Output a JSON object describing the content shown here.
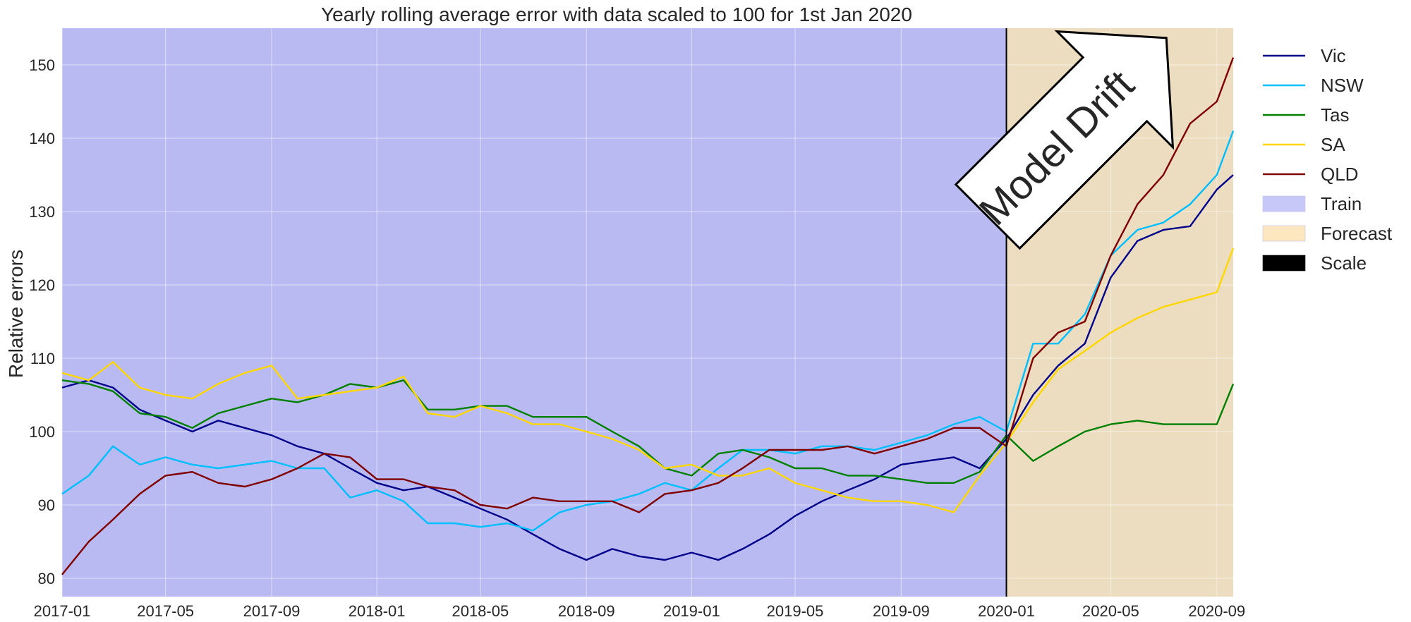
{
  "chart_data": {
    "type": "line",
    "title": "Yearly rolling average error with data scaled to 100 for 1st Jan 2020",
    "xlabel": "",
    "ylabel": "Relative errors",
    "x_ticks": [
      "2017-01",
      "2017-05",
      "2017-09",
      "2018-01",
      "2018-05",
      "2018-09",
      "2019-01",
      "2019-05",
      "2019-09",
      "2020-01",
      "2020-05",
      "2020-09"
    ],
    "xlim": [
      "2017-01-01",
      "2020-09-20"
    ],
    "y_ticks": [
      80,
      90,
      100,
      110,
      120,
      130,
      140,
      150
    ],
    "ylim": [
      77.5,
      155
    ],
    "grid": true,
    "legend_position": "outside-right",
    "regions": [
      {
        "name": "Train",
        "start": "2017-01-01",
        "end": "2020-01-01",
        "color": "#b9baf2"
      },
      {
        "name": "Forecast",
        "start": "2020-01-01",
        "end": "2020-09-20",
        "color": "#ecdcc0"
      }
    ],
    "divider": {
      "date": "2020-01-01",
      "color": "#000000"
    },
    "annotation": {
      "text": "Model Drift",
      "type": "arrow"
    },
    "legend": [
      {
        "name": "Vic",
        "kind": "line",
        "color": "#00008b"
      },
      {
        "name": "NSW",
        "kind": "line",
        "color": "#00bfff"
      },
      {
        "name": "Tas",
        "kind": "line",
        "color": "#008000"
      },
      {
        "name": "SA",
        "kind": "line",
        "color": "#ffd700"
      },
      {
        "name": "QLD",
        "kind": "line",
        "color": "#800000"
      },
      {
        "name": "Train",
        "kind": "patch",
        "color": "#c8c8f8"
      },
      {
        "name": "Forecast",
        "kind": "patch",
        "color": "#fde7c0"
      },
      {
        "name": "Scale",
        "kind": "patch",
        "color": "#000000"
      }
    ],
    "series": [
      {
        "name": "Vic",
        "color": "#00008b",
        "points": [
          [
            "2017-01-01",
            106
          ],
          [
            "2017-02-01",
            107
          ],
          [
            "2017-03-01",
            106
          ],
          [
            "2017-04-01",
            103
          ],
          [
            "2017-05-01",
            101.5
          ],
          [
            "2017-06-01",
            100
          ],
          [
            "2017-07-01",
            101.5
          ],
          [
            "2017-08-01",
            100.5
          ],
          [
            "2017-09-01",
            99.5
          ],
          [
            "2017-10-01",
            98
          ],
          [
            "2017-11-01",
            97
          ],
          [
            "2017-12-01",
            95
          ],
          [
            "2018-01-01",
            93
          ],
          [
            "2018-02-01",
            92
          ],
          [
            "2018-03-01",
            92.5
          ],
          [
            "2018-04-01",
            91
          ],
          [
            "2018-05-01",
            89.5
          ],
          [
            "2018-06-01",
            88
          ],
          [
            "2018-07-01",
            86
          ],
          [
            "2018-08-01",
            84
          ],
          [
            "2018-09-01",
            82.5
          ],
          [
            "2018-10-01",
            84
          ],
          [
            "2018-11-01",
            83
          ],
          [
            "2018-12-01",
            82.5
          ],
          [
            "2019-01-01",
            83.5
          ],
          [
            "2019-02-01",
            82.5
          ],
          [
            "2019-03-01",
            84
          ],
          [
            "2019-04-01",
            86
          ],
          [
            "2019-05-01",
            88.5
          ],
          [
            "2019-06-01",
            90.5
          ],
          [
            "2019-07-01",
            92
          ],
          [
            "2019-08-01",
            93.5
          ],
          [
            "2019-09-01",
            95.5
          ],
          [
            "2019-10-01",
            96
          ],
          [
            "2019-11-01",
            96.5
          ],
          [
            "2019-12-01",
            95
          ],
          [
            "2020-01-01",
            99
          ],
          [
            "2020-02-01",
            105
          ],
          [
            "2020-03-01",
            109
          ],
          [
            "2020-04-01",
            112
          ],
          [
            "2020-05-01",
            121
          ],
          [
            "2020-06-01",
            126
          ],
          [
            "2020-07-01",
            127.5
          ],
          [
            "2020-08-01",
            128
          ],
          [
            "2020-09-01",
            133
          ],
          [
            "2020-09-20",
            135
          ]
        ]
      },
      {
        "name": "NSW",
        "color": "#00bfff",
        "points": [
          [
            "2017-01-01",
            91.5
          ],
          [
            "2017-02-01",
            94
          ],
          [
            "2017-03-01",
            98
          ],
          [
            "2017-04-01",
            95.5
          ],
          [
            "2017-05-01",
            96.5
          ],
          [
            "2017-06-01",
            95.5
          ],
          [
            "2017-07-01",
            95
          ],
          [
            "2017-08-01",
            95.5
          ],
          [
            "2017-09-01",
            96
          ],
          [
            "2017-10-01",
            95
          ],
          [
            "2017-11-01",
            95
          ],
          [
            "2017-12-01",
            91
          ],
          [
            "2018-01-01",
            92
          ],
          [
            "2018-02-01",
            90.5
          ],
          [
            "2018-03-01",
            87.5
          ],
          [
            "2018-04-01",
            87.5
          ],
          [
            "2018-05-01",
            87
          ],
          [
            "2018-06-01",
            87.5
          ],
          [
            "2018-07-01",
            86.5
          ],
          [
            "2018-08-01",
            89
          ],
          [
            "2018-09-01",
            90
          ],
          [
            "2018-10-01",
            90.5
          ],
          [
            "2018-11-01",
            91.5
          ],
          [
            "2018-12-01",
            93
          ],
          [
            "2019-01-01",
            92
          ],
          [
            "2019-02-01",
            95
          ],
          [
            "2019-03-01",
            97.5
          ],
          [
            "2019-04-01",
            97.5
          ],
          [
            "2019-05-01",
            97
          ],
          [
            "2019-06-01",
            98
          ],
          [
            "2019-07-01",
            98
          ],
          [
            "2019-08-01",
            97.5
          ],
          [
            "2019-09-01",
            98.5
          ],
          [
            "2019-10-01",
            99.5
          ],
          [
            "2019-11-01",
            101
          ],
          [
            "2019-12-01",
            102
          ],
          [
            "2020-01-01",
            100
          ],
          [
            "2020-02-01",
            112
          ],
          [
            "2020-03-01",
            112
          ],
          [
            "2020-04-01",
            116
          ],
          [
            "2020-05-01",
            124
          ],
          [
            "2020-06-01",
            127.5
          ],
          [
            "2020-07-01",
            128.5
          ],
          [
            "2020-08-01",
            131
          ],
          [
            "2020-09-01",
            135
          ],
          [
            "2020-09-20",
            141
          ]
        ]
      },
      {
        "name": "Tas",
        "color": "#008000",
        "points": [
          [
            "2017-01-01",
            107
          ],
          [
            "2017-02-01",
            106.5
          ],
          [
            "2017-03-01",
            105.5
          ],
          [
            "2017-04-01",
            102.5
          ],
          [
            "2017-05-01",
            102
          ],
          [
            "2017-06-01",
            100.5
          ],
          [
            "2017-07-01",
            102.5
          ],
          [
            "2017-08-01",
            103.5
          ],
          [
            "2017-09-01",
            104.5
          ],
          [
            "2017-10-01",
            104
          ],
          [
            "2017-11-01",
            105
          ],
          [
            "2017-12-01",
            106.5
          ],
          [
            "2018-01-01",
            106
          ],
          [
            "2018-02-01",
            107
          ],
          [
            "2018-03-01",
            103
          ],
          [
            "2018-04-01",
            103
          ],
          [
            "2018-05-01",
            103.5
          ],
          [
            "2018-06-01",
            103.5
          ],
          [
            "2018-07-01",
            102
          ],
          [
            "2018-08-01",
            102
          ],
          [
            "2018-09-01",
            102
          ],
          [
            "2018-10-01",
            100
          ],
          [
            "2018-11-01",
            98
          ],
          [
            "2018-12-01",
            95
          ],
          [
            "2019-01-01",
            94
          ],
          [
            "2019-02-01",
            97
          ],
          [
            "2019-03-01",
            97.5
          ],
          [
            "2019-04-01",
            96.5
          ],
          [
            "2019-05-01",
            95
          ],
          [
            "2019-06-01",
            95
          ],
          [
            "2019-07-01",
            94
          ],
          [
            "2019-08-01",
            94
          ],
          [
            "2019-09-01",
            93.5
          ],
          [
            "2019-10-01",
            93
          ],
          [
            "2019-11-01",
            93
          ],
          [
            "2019-12-01",
            94.5
          ],
          [
            "2020-01-01",
            99.5
          ],
          [
            "2020-02-01",
            96
          ],
          [
            "2020-03-01",
            98
          ],
          [
            "2020-04-01",
            100
          ],
          [
            "2020-05-01",
            101
          ],
          [
            "2020-06-01",
            101.5
          ],
          [
            "2020-07-01",
            101
          ],
          [
            "2020-08-01",
            101
          ],
          [
            "2020-09-01",
            101
          ],
          [
            "2020-09-20",
            106.5
          ]
        ]
      },
      {
        "name": "SA",
        "color": "#ffd700",
        "points": [
          [
            "2017-01-01",
            108
          ],
          [
            "2017-02-01",
            107
          ],
          [
            "2017-03-01",
            109.5
          ],
          [
            "2017-04-01",
            106
          ],
          [
            "2017-05-01",
            105
          ],
          [
            "2017-06-01",
            104.5
          ],
          [
            "2017-07-01",
            106.5
          ],
          [
            "2017-08-01",
            108
          ],
          [
            "2017-09-01",
            109
          ],
          [
            "2017-10-01",
            104.5
          ],
          [
            "2017-11-01",
            105
          ],
          [
            "2017-12-01",
            105.5
          ],
          [
            "2018-01-01",
            106
          ],
          [
            "2018-02-01",
            107.5
          ],
          [
            "2018-03-01",
            102.5
          ],
          [
            "2018-04-01",
            102
          ],
          [
            "2018-05-01",
            103.5
          ],
          [
            "2018-06-01",
            102.5
          ],
          [
            "2018-07-01",
            101
          ],
          [
            "2018-08-01",
            101
          ],
          [
            "2018-09-01",
            100
          ],
          [
            "2018-10-01",
            99
          ],
          [
            "2018-11-01",
            97.5
          ],
          [
            "2018-12-01",
            95
          ],
          [
            "2019-01-01",
            95.5
          ],
          [
            "2019-02-01",
            94
          ],
          [
            "2019-03-01",
            94
          ],
          [
            "2019-04-01",
            95
          ],
          [
            "2019-05-01",
            93
          ],
          [
            "2019-06-01",
            92
          ],
          [
            "2019-07-01",
            91
          ],
          [
            "2019-08-01",
            90.5
          ],
          [
            "2019-09-01",
            90.5
          ],
          [
            "2019-10-01",
            90
          ],
          [
            "2019-11-01",
            89
          ],
          [
            "2019-12-01",
            94
          ],
          [
            "2020-01-01",
            98.5
          ],
          [
            "2020-02-01",
            104
          ],
          [
            "2020-03-01",
            108.5
          ],
          [
            "2020-04-01",
            111
          ],
          [
            "2020-05-01",
            113.5
          ],
          [
            "2020-06-01",
            115.5
          ],
          [
            "2020-07-01",
            117
          ],
          [
            "2020-08-01",
            118
          ],
          [
            "2020-09-01",
            119
          ],
          [
            "2020-09-20",
            125
          ]
        ]
      },
      {
        "name": "QLD",
        "color": "#800000",
        "points": [
          [
            "2017-01-01",
            80.5
          ],
          [
            "2017-02-01",
            85
          ],
          [
            "2017-03-01",
            88
          ],
          [
            "2017-04-01",
            91.5
          ],
          [
            "2017-05-01",
            94
          ],
          [
            "2017-06-01",
            94.5
          ],
          [
            "2017-07-01",
            93
          ],
          [
            "2017-08-01",
            92.5
          ],
          [
            "2017-09-01",
            93.5
          ],
          [
            "2017-10-01",
            95
          ],
          [
            "2017-11-01",
            97
          ],
          [
            "2017-12-01",
            96.5
          ],
          [
            "2018-01-01",
            93.5
          ],
          [
            "2018-02-01",
            93.5
          ],
          [
            "2018-03-01",
            92.5
          ],
          [
            "2018-04-01",
            92
          ],
          [
            "2018-05-01",
            90
          ],
          [
            "2018-06-01",
            89.5
          ],
          [
            "2018-07-01",
            91
          ],
          [
            "2018-08-01",
            90.5
          ],
          [
            "2018-09-01",
            90.5
          ],
          [
            "2018-10-01",
            90.5
          ],
          [
            "2018-11-01",
            89
          ],
          [
            "2018-12-01",
            91.5
          ],
          [
            "2019-01-01",
            92
          ],
          [
            "2019-02-01",
            93
          ],
          [
            "2019-03-01",
            95
          ],
          [
            "2019-04-01",
            97.5
          ],
          [
            "2019-05-01",
            97.5
          ],
          [
            "2019-06-01",
            97.5
          ],
          [
            "2019-07-01",
            98
          ],
          [
            "2019-08-01",
            97
          ],
          [
            "2019-09-01",
            98
          ],
          [
            "2019-10-01",
            99
          ],
          [
            "2019-11-01",
            100.5
          ],
          [
            "2019-12-01",
            100.5
          ],
          [
            "2020-01-01",
            98
          ],
          [
            "2020-02-01",
            110
          ],
          [
            "2020-03-01",
            113.5
          ],
          [
            "2020-04-01",
            115
          ],
          [
            "2020-05-01",
            124
          ],
          [
            "2020-06-01",
            131
          ],
          [
            "2020-07-01",
            135
          ],
          [
            "2020-08-01",
            142
          ],
          [
            "2020-09-01",
            145
          ],
          [
            "2020-09-20",
            151
          ]
        ]
      }
    ]
  }
}
